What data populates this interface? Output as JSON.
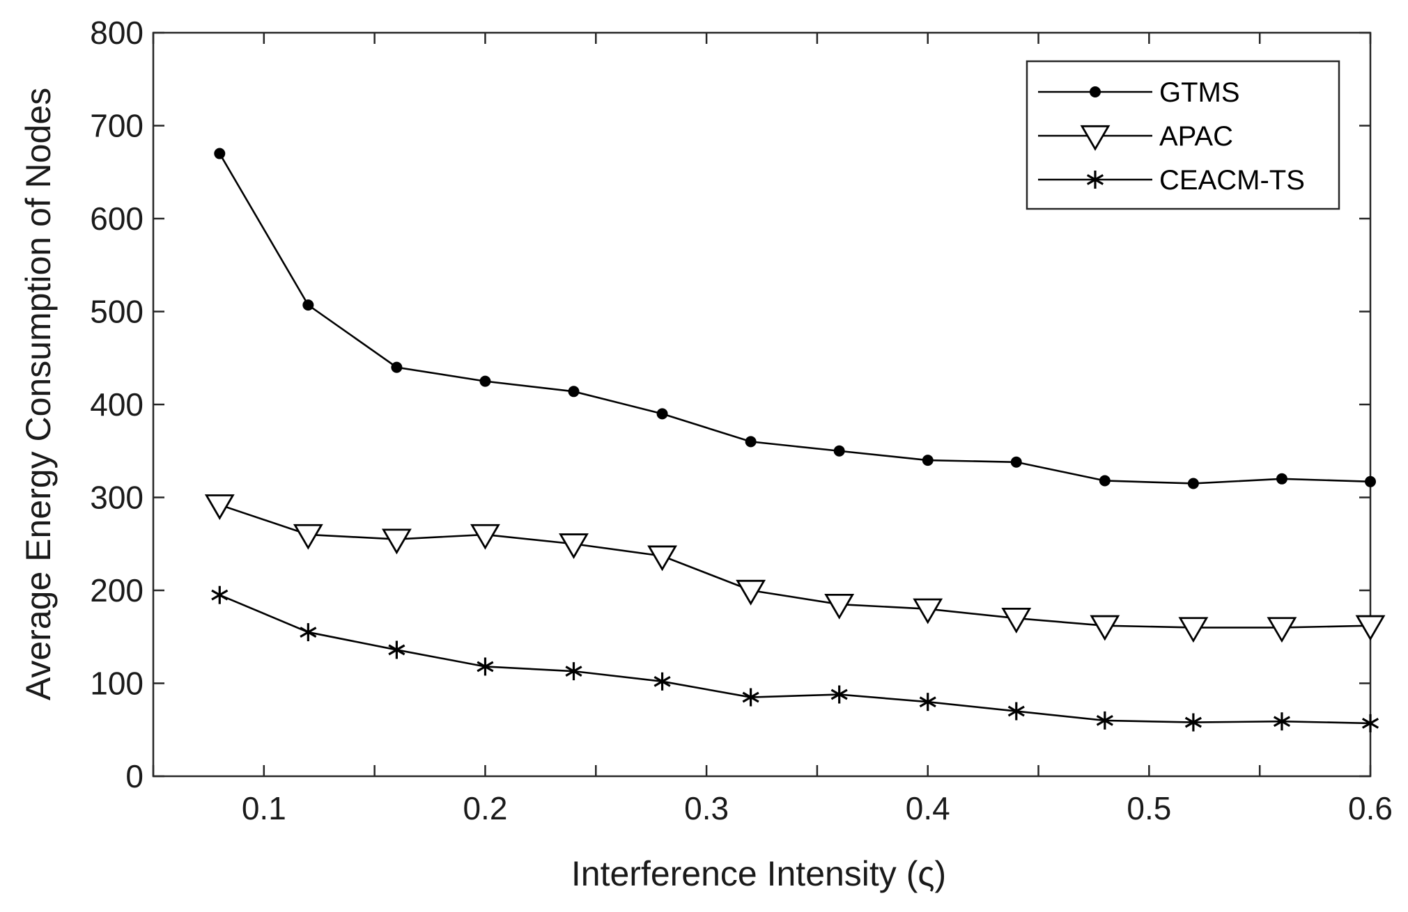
{
  "chart_data": {
    "type": "line",
    "title": "",
    "xlabel": "Interference Intensity (ς)",
    "ylabel": "Average Energy Consumption of Nodes",
    "xlim": [
      0.05,
      0.6
    ],
    "ylim": [
      0,
      800
    ],
    "xticks": [
      0.1,
      0.2,
      0.3,
      0.4,
      0.5,
      0.6
    ],
    "xtick_labels": [
      "0.1",
      "0.2",
      "0.3",
      "0.4",
      "0.5",
      "0.6"
    ],
    "yticks": [
      0,
      100,
      200,
      300,
      400,
      500,
      600,
      700,
      800
    ],
    "ytick_labels": [
      "0",
      "100",
      "200",
      "300",
      "400",
      "500",
      "600",
      "700",
      "800"
    ],
    "grid": false,
    "legend_position": "top-right",
    "x": [
      0.08,
      0.12,
      0.16,
      0.2,
      0.24,
      0.28,
      0.32,
      0.36,
      0.4,
      0.44,
      0.48,
      0.52,
      0.56,
      0.6
    ],
    "series": [
      {
        "name": "GTMS",
        "marker": "dot",
        "values": [
          670,
          507,
          440,
          425,
          414,
          390,
          360,
          350,
          340,
          338,
          318,
          315,
          320,
          317
        ]
      },
      {
        "name": "APAC",
        "marker": "triangle-down",
        "values": [
          292,
          260,
          255,
          260,
          250,
          237,
          200,
          185,
          180,
          170,
          162,
          160,
          160,
          162
        ]
      },
      {
        "name": "CEACM-TS",
        "marker": "asterisk",
        "values": [
          195,
          155,
          136,
          118,
          113,
          102,
          85,
          88,
          80,
          70,
          60,
          58,
          59,
          57
        ]
      }
    ]
  }
}
